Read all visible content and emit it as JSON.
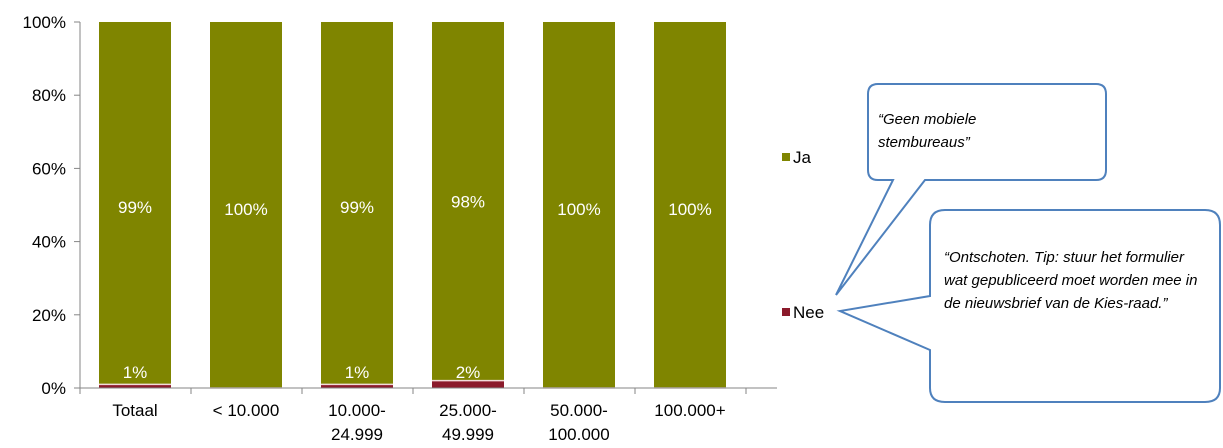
{
  "chart_data": {
    "type": "bar",
    "stacked": true,
    "categories": [
      "Totaal",
      "< 10.000",
      "10.000-\n24.999",
      "25.000-\n49.999",
      "50.000-\n100.000",
      "100.000+"
    ],
    "series": [
      {
        "name": "Nee",
        "values": [
          1,
          0,
          1,
          2,
          0,
          0
        ],
        "labels": [
          "1%",
          "",
          "1%",
          "2%",
          "",
          ""
        ],
        "color": "#8b1a2b"
      },
      {
        "name": "Ja",
        "values": [
          99,
          100,
          99,
          98,
          100,
          100
        ],
        "labels": [
          "99%",
          "100%",
          "99%",
          "98%",
          "100%",
          "100%"
        ],
        "color": "#7f8500"
      }
    ],
    "y_ticks": [
      "0%",
      "20%",
      "40%",
      "60%",
      "80%",
      "100%"
    ],
    "ylim": [
      0,
      100
    ],
    "grid": false,
    "legend_position": "right",
    "legend": [
      {
        "label": "Ja",
        "color": "#7f8500"
      },
      {
        "label": "Nee",
        "color": "#8b1a2b"
      }
    ]
  },
  "callouts": [
    {
      "text": "“Geen mobiele stembureaus”"
    },
    {
      "text": "“Ontschoten. Tip: stuur het formulier wat gepubliceerd moet worden mee in de nieuwsbrief van de Kies-raad.”"
    }
  ],
  "colors": {
    "callout_border": "#4f81bd",
    "axis": "#868686",
    "separator": "#f2dcdb"
  }
}
